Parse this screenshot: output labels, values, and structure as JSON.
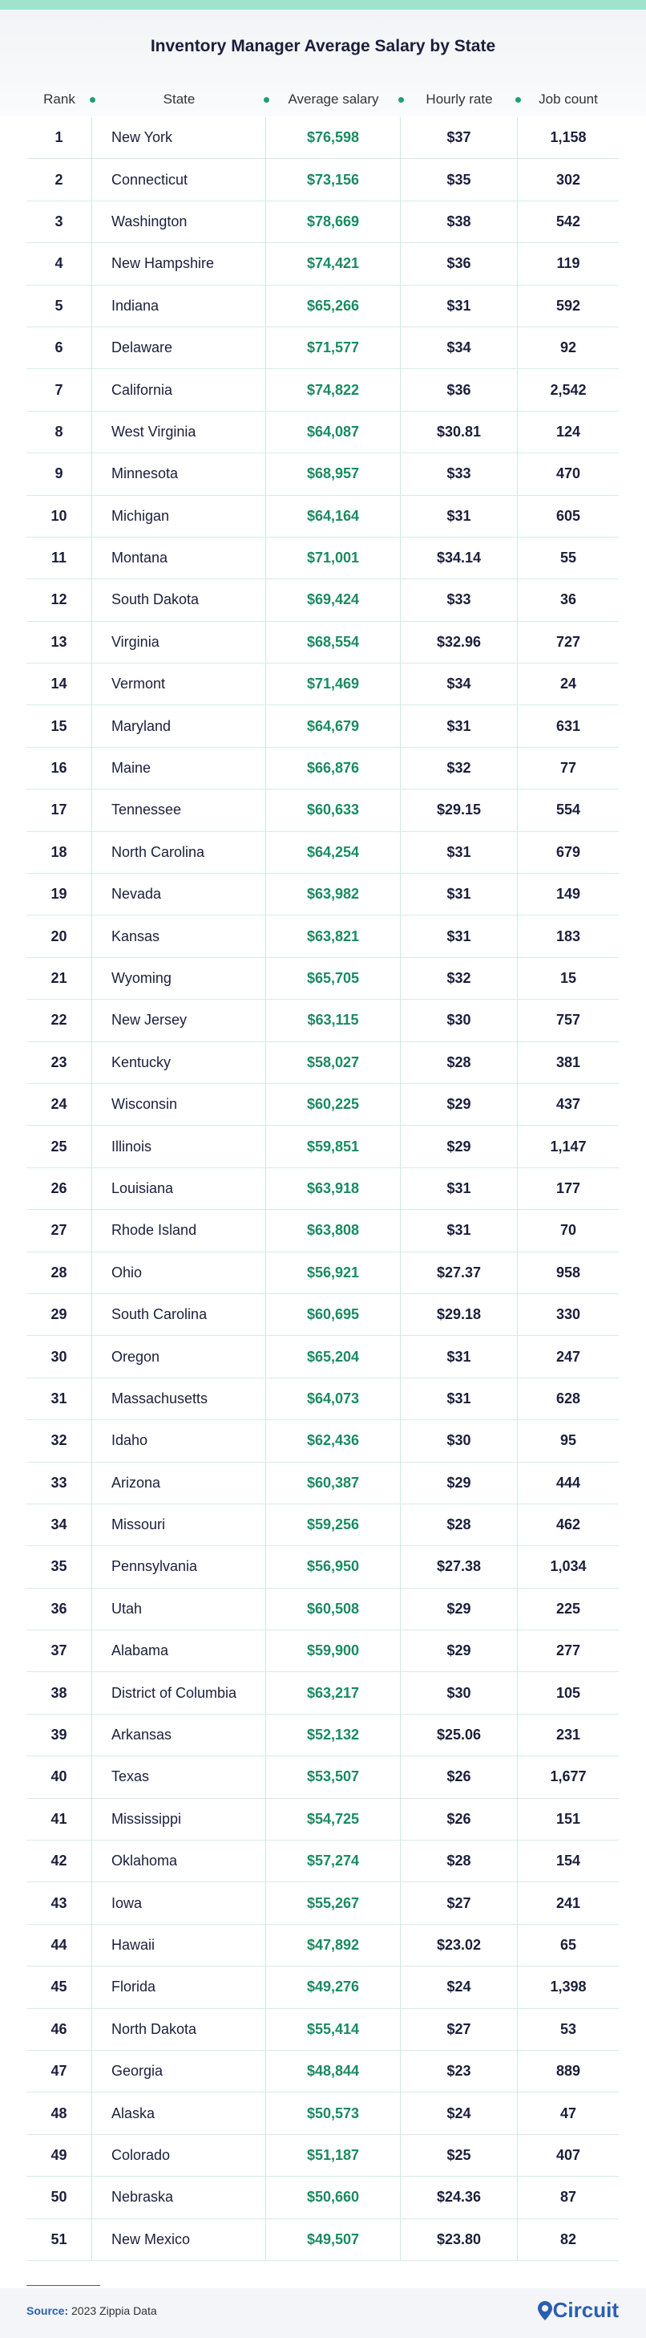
{
  "title": "Inventory Manager Average Salary by State",
  "table": {
    "columns": [
      "Rank",
      "State",
      "Average salary",
      "Hourly rate",
      "Job count"
    ],
    "rows": [
      [
        "1",
        "New York",
        "$76,598",
        "$37",
        "1,158"
      ],
      [
        "2",
        "Connecticut",
        "$73,156",
        "$35",
        "302"
      ],
      [
        "3",
        "Washington",
        "$78,669",
        "$38",
        "542"
      ],
      [
        "4",
        "New Hampshire",
        "$74,421",
        "$36",
        "119"
      ],
      [
        "5",
        "Indiana",
        "$65,266",
        "$31",
        "592"
      ],
      [
        "6",
        "Delaware",
        "$71,577",
        "$34",
        "92"
      ],
      [
        "7",
        "California",
        "$74,822",
        "$36",
        "2,542"
      ],
      [
        "8",
        "West Virginia",
        "$64,087",
        "$30.81",
        "124"
      ],
      [
        "9",
        "Minnesota",
        "$68,957",
        "$33",
        "470"
      ],
      [
        "10",
        "Michigan",
        "$64,164",
        "$31",
        "605"
      ],
      [
        "11",
        "Montana",
        "$71,001",
        "$34.14",
        "55"
      ],
      [
        "12",
        "South Dakota",
        "$69,424",
        "$33",
        "36"
      ],
      [
        "13",
        "Virginia",
        "$68,554",
        "$32.96",
        "727"
      ],
      [
        "14",
        "Vermont",
        "$71,469",
        "$34",
        "24"
      ],
      [
        "15",
        "Maryland",
        "$64,679",
        "$31",
        "631"
      ],
      [
        "16",
        "Maine",
        "$66,876",
        "$32",
        "77"
      ],
      [
        "17",
        "Tennessee",
        "$60,633",
        "$29.15",
        "554"
      ],
      [
        "18",
        "North Carolina",
        "$64,254",
        "$31",
        "679"
      ],
      [
        "19",
        "Nevada",
        "$63,982",
        "$31",
        "149"
      ],
      [
        "20",
        "Kansas",
        "$63,821",
        "$31",
        "183"
      ],
      [
        "21",
        "Wyoming",
        "$65,705",
        "$32",
        "15"
      ],
      [
        "22",
        "New Jersey",
        "$63,115",
        "$30",
        "757"
      ],
      [
        "23",
        "Kentucky",
        "$58,027",
        "$28",
        "381"
      ],
      [
        "24",
        "Wisconsin",
        "$60,225",
        "$29",
        "437"
      ],
      [
        "25",
        "Illinois",
        "$59,851",
        "$29",
        "1,147"
      ],
      [
        "26",
        "Louisiana",
        "$63,918",
        "$31",
        "177"
      ],
      [
        "27",
        "Rhode Island",
        "$63,808",
        "$31",
        "70"
      ],
      [
        "28",
        "Ohio",
        "$56,921",
        "$27.37",
        "958"
      ],
      [
        "29",
        "South Carolina",
        "$60,695",
        "$29.18",
        "330"
      ],
      [
        "30",
        "Oregon",
        "$65,204",
        "$31",
        "247"
      ],
      [
        "31",
        "Massachusetts",
        "$64,073",
        "$31",
        "628"
      ],
      [
        "32",
        "Idaho",
        "$62,436",
        "$30",
        "95"
      ],
      [
        "33",
        "Arizona",
        "$60,387",
        "$29",
        "444"
      ],
      [
        "34",
        "Missouri",
        "$59,256",
        "$28",
        "462"
      ],
      [
        "35",
        "Pennsylvania",
        "$56,950",
        "$27.38",
        "1,034"
      ],
      [
        "36",
        "Utah",
        "$60,508",
        "$29",
        "225"
      ],
      [
        "37",
        "Alabama",
        "$59,900",
        "$29",
        "277"
      ],
      [
        "38",
        "District of Columbia",
        "$63,217",
        "$30",
        "105"
      ],
      [
        "39",
        "Arkansas",
        "$52,132",
        "$25.06",
        "231"
      ],
      [
        "40",
        "Texas",
        "$53,507",
        "$26",
        "1,677"
      ],
      [
        "41",
        "Mississippi",
        "$54,725",
        "$26",
        "151"
      ],
      [
        "42",
        "Oklahoma",
        "$57,274",
        "$28",
        "154"
      ],
      [
        "43",
        "Iowa",
        "$55,267",
        "$27",
        "241"
      ],
      [
        "44",
        "Hawaii",
        "$47,892",
        "$23.02",
        "65"
      ],
      [
        "45",
        "Florida",
        "$49,276",
        "$24",
        "1,398"
      ],
      [
        "46",
        "North Dakota",
        "$55,414",
        "$27",
        "53"
      ],
      [
        "47",
        "Georgia",
        "$48,844",
        "$23",
        "889"
      ],
      [
        "48",
        "Alaska",
        "$50,573",
        "$24",
        "47"
      ],
      [
        "49",
        "Colorado",
        "$51,187",
        "$25",
        "407"
      ],
      [
        "50",
        "Nebraska",
        "$50,660",
        "$24.36",
        "87"
      ],
      [
        "51",
        "New Mexico",
        "$49,507",
        "$23.80",
        "82"
      ]
    ]
  },
  "footer": {
    "source_label": "Source:",
    "source": "2023 Zippia Data",
    "brand": "Circuit"
  }
}
